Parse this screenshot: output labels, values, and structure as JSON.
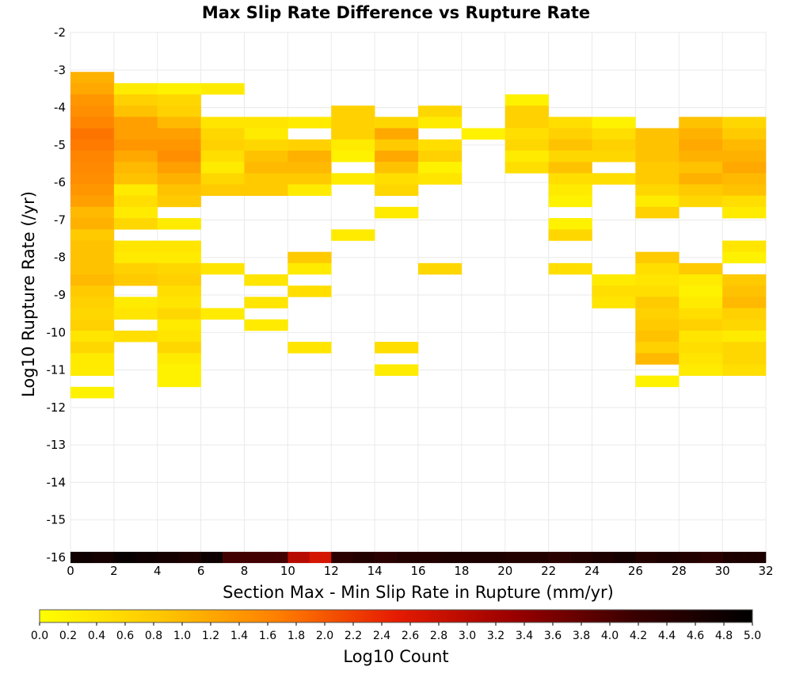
{
  "chart_data": {
    "type": "heatmap",
    "title": "Max Slip Rate Difference vs Rupture Rate",
    "xlabel": "Section Max - Min Slip Rate in Rupture (mm/yr)",
    "ylabel": "Log10 Rupture Rate (/yr)",
    "xlim": [
      0,
      32
    ],
    "ylim": [
      -16,
      -2
    ],
    "x_bin_width": 2,
    "y_bin_height": 0.3,
    "x_ticks": [
      "0",
      "2",
      "4",
      "6",
      "8",
      "10",
      "12",
      "14",
      "16",
      "18",
      "20",
      "22",
      "24",
      "26",
      "28",
      "30",
      "32"
    ],
    "y_ticks": [
      "-2",
      "-3",
      "-4",
      "-5",
      "-6",
      "-7",
      "-8",
      "-9",
      "-10",
      "-11",
      "-12",
      "-13",
      "-14",
      "-15",
      "-16"
    ],
    "colorbar": {
      "label": "Log10 Count",
      "min": 0.0,
      "max": 5.0,
      "ticks": [
        "0.0",
        "0.2",
        "0.4",
        "0.6",
        "0.8",
        "1.0",
        "1.2",
        "1.4",
        "1.6",
        "1.8",
        "2.0",
        "2.2",
        "2.4",
        "2.6",
        "2.8",
        "3.0",
        "3.2",
        "3.4",
        "3.6",
        "3.8",
        "4.0",
        "4.2",
        "4.4",
        "4.6",
        "4.8",
        "5.0"
      ],
      "colors": [
        "#ffff00",
        "#ffc800",
        "#ff7f00",
        "#e61b00",
        "#990000",
        "#3a0000",
        "#000000"
      ]
    },
    "grid": true,
    "columns": [
      {
        "x": 0,
        "cells": [
          [
            -3.2,
            1.1
          ],
          [
            -3.5,
            1.2
          ],
          [
            -3.8,
            1.4
          ],
          [
            -4.1,
            1.5
          ],
          [
            -4.4,
            1.6
          ],
          [
            -4.7,
            1.75
          ],
          [
            -5.0,
            1.7
          ],
          [
            -5.3,
            1.6
          ],
          [
            -5.6,
            1.55
          ],
          [
            -5.9,
            1.5
          ],
          [
            -6.2,
            1.4
          ],
          [
            -6.5,
            1.3
          ],
          [
            -6.8,
            1.0
          ],
          [
            -7.1,
            1.1
          ],
          [
            -7.4,
            0.8
          ],
          [
            -7.7,
            0.9
          ],
          [
            -8.0,
            0.9
          ],
          [
            -8.3,
            0.9
          ],
          [
            -8.6,
            1.0
          ],
          [
            -8.9,
            0.8
          ],
          [
            -9.2,
            0.7
          ],
          [
            -9.5,
            0.6
          ],
          [
            -9.8,
            0.7
          ],
          [
            -10.1,
            0.4
          ],
          [
            -10.4,
            0.6
          ],
          [
            -10.7,
            0.3
          ],
          [
            -11.0,
            0.3
          ],
          [
            -11.6,
            0.2
          ]
        ]
      },
      {
        "x": 2,
        "cells": [
          [
            -3.5,
            0.3
          ],
          [
            -3.8,
            0.7
          ],
          [
            -4.1,
            0.9
          ],
          [
            -4.4,
            1.3
          ],
          [
            -4.7,
            1.3
          ],
          [
            -5.0,
            1.4
          ],
          [
            -5.3,
            1.2
          ],
          [
            -5.6,
            1.0
          ],
          [
            -5.9,
            0.9
          ],
          [
            -6.2,
            0.3
          ],
          [
            -6.5,
            0.5
          ],
          [
            -6.8,
            0.3
          ],
          [
            -7.1,
            0.6
          ],
          [
            -7.7,
            0.4
          ],
          [
            -8.0,
            0.3
          ],
          [
            -8.3,
            0.7
          ],
          [
            -8.6,
            0.8
          ],
          [
            -9.2,
            0.3
          ],
          [
            -9.5,
            0.4
          ],
          [
            -10.1,
            0.5
          ]
        ]
      },
      {
        "x": 4,
        "cells": [
          [
            -3.5,
            0.2
          ],
          [
            -3.8,
            0.6
          ],
          [
            -4.1,
            0.7
          ],
          [
            -4.4,
            1.0
          ],
          [
            -4.7,
            1.3
          ],
          [
            -5.0,
            1.4
          ],
          [
            -5.3,
            1.5
          ],
          [
            -5.6,
            1.3
          ],
          [
            -5.9,
            1.1
          ],
          [
            -6.2,
            0.9
          ],
          [
            -6.5,
            0.8
          ],
          [
            -7.1,
            0.3
          ],
          [
            -7.7,
            0.4
          ],
          [
            -8.0,
            0.3
          ],
          [
            -8.3,
            0.6
          ],
          [
            -8.6,
            0.7
          ],
          [
            -8.9,
            0.5
          ],
          [
            -9.2,
            0.4
          ],
          [
            -9.5,
            0.6
          ],
          [
            -9.8,
            0.3
          ],
          [
            -10.1,
            0.4
          ],
          [
            -10.4,
            0.6
          ],
          [
            -10.7,
            0.3
          ],
          [
            -11.0,
            0.2
          ],
          [
            -11.3,
            0.2
          ]
        ]
      },
      {
        "x": 6,
        "cells": [
          [
            -3.5,
            0.3
          ],
          [
            -4.4,
            0.4
          ],
          [
            -4.7,
            0.6
          ],
          [
            -5.0,
            0.7
          ],
          [
            -5.3,
            0.5
          ],
          [
            -5.6,
            0.3
          ],
          [
            -5.9,
            0.6
          ],
          [
            -6.2,
            0.8
          ],
          [
            -8.3,
            0.4
          ],
          [
            -9.5,
            0.3
          ]
        ]
      },
      {
        "x": 8,
        "cells": [
          [
            -4.4,
            0.4
          ],
          [
            -4.7,
            0.3
          ],
          [
            -5.0,
            0.6
          ],
          [
            -5.3,
            0.9
          ],
          [
            -5.6,
            1.0
          ],
          [
            -5.9,
            0.8
          ],
          [
            -6.2,
            0.8
          ],
          [
            -8.6,
            0.4
          ],
          [
            -9.2,
            0.4
          ],
          [
            -9.8,
            0.3
          ]
        ]
      },
      {
        "x": 10,
        "cells": [
          [
            -4.4,
            0.3
          ],
          [
            -5.0,
            0.7
          ],
          [
            -5.3,
            1.1
          ],
          [
            -5.6,
            1.0
          ],
          [
            -5.9,
            0.8
          ],
          [
            -6.2,
            0.3
          ],
          [
            -8.0,
            0.8
          ],
          [
            -8.3,
            0.3
          ],
          [
            -8.9,
            0.5
          ],
          [
            -10.4,
            0.4
          ]
        ]
      },
      {
        "x": 12,
        "cells": [
          [
            -4.1,
            0.7
          ],
          [
            -4.4,
            0.7
          ],
          [
            -4.7,
            0.7
          ],
          [
            -5.0,
            0.3
          ],
          [
            -5.3,
            0.2
          ],
          [
            -5.9,
            0.3
          ],
          [
            -7.4,
            0.3
          ]
        ]
      },
      {
        "x": 14,
        "cells": [
          [
            -4.4,
            0.6
          ],
          [
            -4.7,
            1.2
          ],
          [
            -5.0,
            0.8
          ],
          [
            -5.3,
            1.2
          ],
          [
            -5.6,
            0.9
          ],
          [
            -5.9,
            0.5
          ],
          [
            -6.2,
            0.6
          ],
          [
            -6.8,
            0.3
          ],
          [
            -10.4,
            0.5
          ],
          [
            -11.0,
            0.3
          ]
        ]
      },
      {
        "x": 16,
        "cells": [
          [
            -4.1,
            0.6
          ],
          [
            -4.4,
            0.3
          ],
          [
            -5.0,
            0.5
          ],
          [
            -5.3,
            0.7
          ],
          [
            -5.6,
            0.2
          ],
          [
            -5.9,
            0.4
          ],
          [
            -8.3,
            0.6
          ]
        ]
      },
      {
        "x": 18,
        "cells": [
          [
            -4.7,
            0.2
          ]
        ]
      },
      {
        "x": 20,
        "cells": [
          [
            -3.8,
            0.2
          ],
          [
            -4.1,
            0.7
          ],
          [
            -4.4,
            0.7
          ],
          [
            -4.7,
            0.5
          ],
          [
            -5.0,
            0.6
          ],
          [
            -5.3,
            0.3
          ],
          [
            -5.6,
            0.5
          ]
        ]
      },
      {
        "x": 22,
        "cells": [
          [
            -4.4,
            0.5
          ],
          [
            -4.7,
            0.7
          ],
          [
            -5.0,
            0.9
          ],
          [
            -5.3,
            0.6
          ],
          [
            -5.6,
            0.9
          ],
          [
            -5.9,
            0.5
          ],
          [
            -6.2,
            0.3
          ],
          [
            -6.5,
            0.2
          ],
          [
            -7.1,
            0.2
          ],
          [
            -7.4,
            0.6
          ],
          [
            -8.3,
            0.5
          ]
        ]
      },
      {
        "x": 24,
        "cells": [
          [
            -4.4,
            0.2
          ],
          [
            -4.7,
            0.5
          ],
          [
            -5.0,
            0.7
          ],
          [
            -5.3,
            0.6
          ],
          [
            -5.9,
            0.5
          ],
          [
            -8.6,
            0.3
          ],
          [
            -8.9,
            0.5
          ],
          [
            -9.2,
            0.4
          ]
        ]
      },
      {
        "x": 26,
        "cells": [
          [
            -4.7,
            0.9
          ],
          [
            -5.0,
            0.9
          ],
          [
            -5.3,
            0.9
          ],
          [
            -5.6,
            0.8
          ],
          [
            -5.9,
            0.8
          ],
          [
            -6.2,
            0.6
          ],
          [
            -6.5,
            0.3
          ],
          [
            -6.8,
            0.7
          ],
          [
            -8.0,
            0.8
          ],
          [
            -8.3,
            0.5
          ],
          [
            -8.6,
            0.4
          ],
          [
            -8.9,
            0.5
          ],
          [
            -9.2,
            0.8
          ],
          [
            -9.5,
            0.7
          ],
          [
            -9.8,
            0.8
          ],
          [
            -10.1,
            0.9
          ],
          [
            -10.4,
            0.7
          ],
          [
            -10.7,
            1.0
          ],
          [
            -11.3,
            0.2
          ]
        ]
      },
      {
        "x": 28,
        "cells": [
          [
            -4.4,
            0.9
          ],
          [
            -4.7,
            1.1
          ],
          [
            -5.0,
            1.2
          ],
          [
            -5.3,
            1.1
          ],
          [
            -5.6,
            0.9
          ],
          [
            -5.9,
            1.1
          ],
          [
            -6.2,
            0.8
          ],
          [
            -6.5,
            0.6
          ],
          [
            -8.3,
            0.8
          ],
          [
            -8.6,
            0.3
          ],
          [
            -8.9,
            0.2
          ],
          [
            -9.2,
            0.3
          ],
          [
            -9.5,
            0.5
          ],
          [
            -9.8,
            0.7
          ],
          [
            -10.1,
            0.4
          ],
          [
            -10.4,
            0.5
          ],
          [
            -10.7,
            0.4
          ],
          [
            -11.0,
            0.3
          ]
        ]
      },
      {
        "x": 30,
        "cells": [
          [
            -4.4,
            0.6
          ],
          [
            -4.7,
            0.8
          ],
          [
            -5.0,
            1.0
          ],
          [
            -5.3,
            1.1
          ],
          [
            -5.6,
            1.2
          ],
          [
            -5.9,
            1.0
          ],
          [
            -6.2,
            0.9
          ],
          [
            -6.5,
            0.5
          ],
          [
            -6.8,
            0.3
          ],
          [
            -7.7,
            0.4
          ],
          [
            -8.0,
            0.2
          ],
          [
            -8.6,
            0.8
          ],
          [
            -8.9,
            0.9
          ],
          [
            -9.2,
            1.0
          ],
          [
            -9.5,
            0.7
          ],
          [
            -9.8,
            0.6
          ],
          [
            -10.1,
            0.3
          ],
          [
            -10.4,
            0.6
          ],
          [
            -10.7,
            0.6
          ],
          [
            -11.0,
            0.5
          ]
        ]
      }
    ],
    "bottom_row": {
      "y": -16,
      "values": [
        4.8,
        4.7,
        4.9,
        4.8,
        4.7,
        4.6,
        4.8,
        4.1,
        4.1,
        4.1,
        3.0,
        2.7,
        4.4,
        4.5,
        4.4,
        4.5,
        4.5,
        4.6,
        4.6,
        4.6,
        4.5,
        4.5,
        4.4,
        4.5,
        4.6,
        4.7,
        4.5,
        4.6,
        4.5,
        4.4,
        4.6,
        4.6
      ]
    }
  }
}
